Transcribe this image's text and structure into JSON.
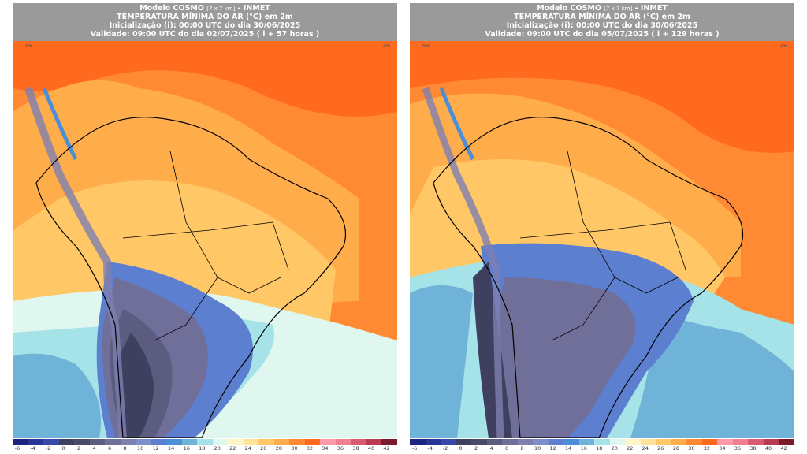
{
  "panels": [
    {
      "title_line1": "Modelo COSMO",
      "title_line1_small": "[7 x 7 km]",
      "title_line1_suffix": "- INMET",
      "title_line2": "TEMPERATURA MÍNIMA DO AR (°C) em 2m",
      "title_line3": "Inicialização (i): 00:00 UTC do dia 30/06/2025",
      "title_line4": "Validade: 09:00 UTC do dia 02/07/2025 ( i + 57 horas )"
    },
    {
      "title_line1": "Modelo COSMO",
      "title_line1_small": "[7 x 7 km]",
      "title_line1_suffix": "- INMET",
      "title_line2": "TEMPERATURA MÍNIMA DO AR (°C) em 2m",
      "title_line3": "Inicialização (i): 00:00 UTC do dia 30/06/2025",
      "title_line4": "Validade: 09:00 UTC do dia 05/07/2025 ( i + 129 horas )"
    }
  ],
  "colorbar": {
    "ticks": [
      "-6",
      "-4",
      "-2",
      "0",
      "2",
      "4",
      "6",
      "8",
      "10",
      "12",
      "14",
      "16",
      "18",
      "20",
      "22",
      "24",
      "26",
      "28",
      "30",
      "32",
      "34",
      "36",
      "38",
      "40",
      "42"
    ],
    "colors": [
      "#1a237e",
      "#283593",
      "#3949ab",
      "#3f3f5f",
      "#4a4a6a",
      "#5c5c80",
      "#6f6f99",
      "#8080b0",
      "#7e8ecb",
      "#5c7fd0",
      "#4a8fd8",
      "#6fb3d8",
      "#a6e3e8",
      "#e0f7f0",
      "#fff6c8",
      "#ffe39a",
      "#ffc766",
      "#ffad4a",
      "#ff8a33",
      "#ff6a1f",
      "#ff9aa8",
      "#f08090",
      "#d85a70",
      "#b83a55",
      "#7a1a2a"
    ]
  }
}
